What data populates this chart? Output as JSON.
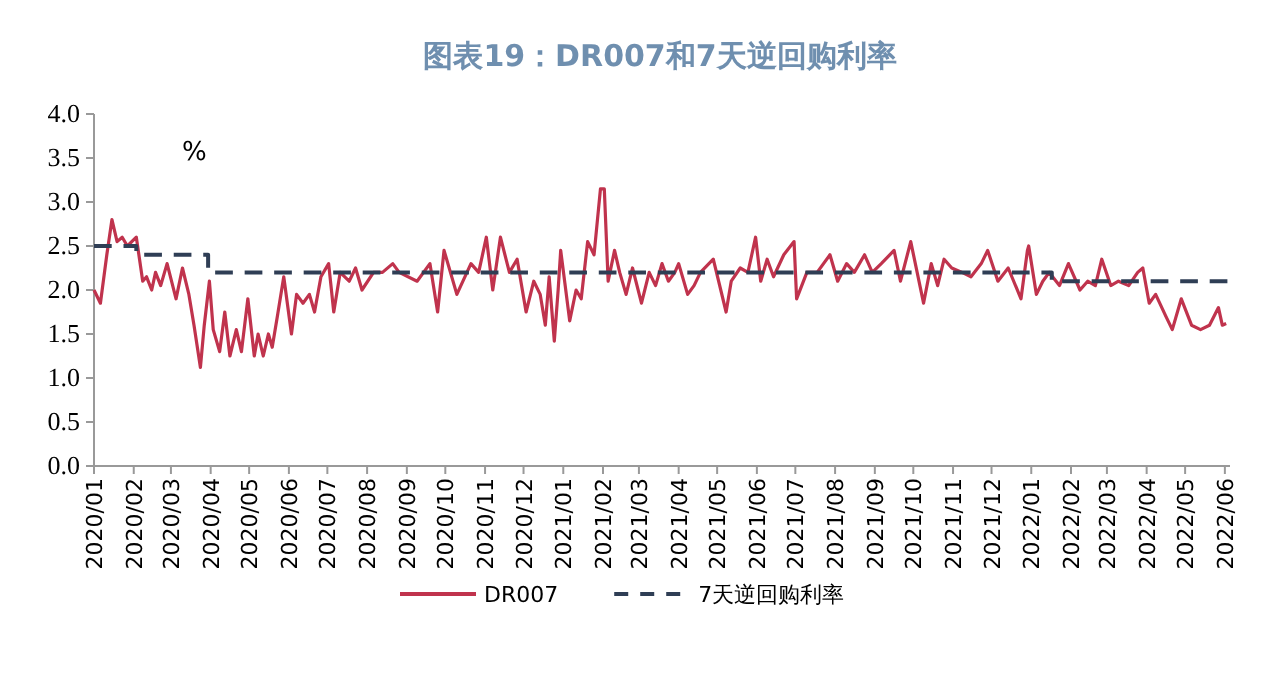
{
  "chart_data": {
    "type": "line",
    "title": "图表19：DR007和7天逆回购利率",
    "annotations": [
      "%"
    ],
    "xlim": [
      "2020-01-01",
      "2022-06-05"
    ],
    "xticks": [
      {
        "value": "2020-01-01",
        "label": "2020/01"
      },
      {
        "value": "2020-02-01",
        "label": "2020/02"
      },
      {
        "value": "2020-03-01",
        "label": "2020/03"
      },
      {
        "value": "2020-04-01",
        "label": "2020/04"
      },
      {
        "value": "2020-05-01",
        "label": "2020/05"
      },
      {
        "value": "2020-06-01",
        "label": "2020/06"
      },
      {
        "value": "2020-07-01",
        "label": "2020/07"
      },
      {
        "value": "2020-08-01",
        "label": "2020/08"
      },
      {
        "value": "2020-09-01",
        "label": "2020/09"
      },
      {
        "value": "2020-10-01",
        "label": "2020/10"
      },
      {
        "value": "2020-11-01",
        "label": "2020/11"
      },
      {
        "value": "2020-12-01",
        "label": "2020/12"
      },
      {
        "value": "2021-01-01",
        "label": "2021/01"
      },
      {
        "value": "2021-02-01",
        "label": "2021/02"
      },
      {
        "value": "2021-03-01",
        "label": "2021/03"
      },
      {
        "value": "2021-04-01",
        "label": "2021/04"
      },
      {
        "value": "2021-05-01",
        "label": "2021/05"
      },
      {
        "value": "2021-06-01",
        "label": "2021/06"
      },
      {
        "value": "2021-07-01",
        "label": "2021/07"
      },
      {
        "value": "2021-08-01",
        "label": "2021/08"
      },
      {
        "value": "2021-09-01",
        "label": "2021/09"
      },
      {
        "value": "2021-10-01",
        "label": "2021/10"
      },
      {
        "value": "2021-11-01",
        "label": "2021/11"
      },
      {
        "value": "2021-12-01",
        "label": "2021/12"
      },
      {
        "value": "2022-01-01",
        "label": "2022/01"
      },
      {
        "value": "2022-02-01",
        "label": "2022/02"
      },
      {
        "value": "2022-03-01",
        "label": "2022/03"
      },
      {
        "value": "2022-04-01",
        "label": "2022/04"
      },
      {
        "value": "2022-05-01",
        "label": "2022/05"
      },
      {
        "value": "2022-06-01",
        "label": "2022/06"
      }
    ],
    "ylim": [
      0,
      4
    ],
    "yticks": [
      {
        "value": 0,
        "label": "0.0"
      },
      {
        "value": 0.5,
        "label": "0.5"
      },
      {
        "value": 1,
        "label": "1.0"
      },
      {
        "value": 1.5,
        "label": "1.5"
      },
      {
        "value": 2,
        "label": "2.0"
      },
      {
        "value": 2.5,
        "label": "2.5"
      },
      {
        "value": 3,
        "label": "3.0"
      },
      {
        "value": 3.5,
        "label": "3.5"
      },
      {
        "value": 4,
        "label": "4.0"
      }
    ],
    "grid": false,
    "legend": "bottom",
    "series": [
      {
        "name": "DR007",
        "color": "#c0334d",
        "line_style": "solid",
        "x": [
          "2020-01-01",
          "2020-01-06",
          "2020-01-11",
          "2020-01-15",
          "2020-01-19",
          "2020-01-23",
          "2020-01-27",
          "2020-02-03",
          "2020-02-08",
          "2020-02-11",
          "2020-02-15",
          "2020-02-18",
          "2020-02-22",
          "2020-02-27",
          "2020-03-05",
          "2020-03-10",
          "2020-03-15",
          "2020-03-19",
          "2020-03-24",
          "2020-03-27",
          "2020-03-31",
          "2020-04-03",
          "2020-04-08",
          "2020-04-12",
          "2020-04-16",
          "2020-04-21",
          "2020-04-25",
          "2020-04-30",
          "2020-05-05",
          "2020-05-08",
          "2020-05-12",
          "2020-05-16",
          "2020-05-19",
          "2020-05-23",
          "2020-05-28",
          "2020-06-03",
          "2020-06-07",
          "2020-06-12",
          "2020-06-17",
          "2020-06-21",
          "2020-06-26",
          "2020-07-02",
          "2020-07-06",
          "2020-07-11",
          "2020-07-18",
          "2020-07-23",
          "2020-07-28",
          "2020-08-06",
          "2020-08-13",
          "2020-08-21",
          "2020-08-26",
          "2020-09-09",
          "2020-09-19",
          "2020-09-25",
          "2020-09-30",
          "2020-10-10",
          "2020-10-21",
          "2020-10-27",
          "2020-11-02",
          "2020-11-07",
          "2020-11-13",
          "2020-11-20",
          "2020-11-26",
          "2020-12-03",
          "2020-12-09",
          "2020-12-14",
          "2020-12-18",
          "2020-12-21",
          "2020-12-25",
          "2020-12-28",
          "2020-12-30",
          "2021-01-06",
          "2021-01-11",
          "2021-01-15",
          "2021-01-20",
          "2021-01-25",
          "2021-01-30",
          "2021-02-02",
          "2021-02-05",
          "2021-02-10",
          "2021-02-14",
          "2021-02-19",
          "2021-02-24",
          "2021-03-03",
          "2021-03-09",
          "2021-03-14",
          "2021-03-19",
          "2021-03-24",
          "2021-03-29",
          "2021-04-01",
          "2021-04-08",
          "2021-04-13",
          "2021-04-18",
          "2021-04-28",
          "2021-05-08",
          "2021-05-12",
          "2021-05-19",
          "2021-05-25",
          "2021-05-31",
          "2021-06-04",
          "2021-06-09",
          "2021-06-14",
          "2021-06-22",
          "2021-06-30",
          "2021-07-02",
          "2021-07-10",
          "2021-07-18",
          "2021-07-28",
          "2021-08-03",
          "2021-08-10",
          "2021-08-16",
          "2021-08-24",
          "2021-08-30",
          "2021-09-06",
          "2021-09-16",
          "2021-09-21",
          "2021-09-29",
          "2021-10-09",
          "2021-10-15",
          "2021-10-20",
          "2021-10-25",
          "2021-10-31",
          "2021-11-08",
          "2021-11-15",
          "2021-11-23",
          "2021-11-28",
          "2021-12-06",
          "2021-12-14",
          "2021-12-24",
          "2021-12-29",
          "2021-12-30",
          "2022-01-05",
          "2022-01-10",
          "2022-01-15",
          "2022-01-23",
          "2022-01-30",
          "2022-02-08",
          "2022-02-14",
          "2022-02-20",
          "2022-02-25",
          "2022-03-04",
          "2022-03-10",
          "2022-03-18",
          "2022-03-25",
          "2022-03-29",
          "2022-04-03",
          "2022-04-08",
          "2022-04-16",
          "2022-04-21",
          "2022-04-28",
          "2022-05-06",
          "2022-05-13",
          "2022-05-20",
          "2022-05-27",
          "2022-05-30",
          "2022-06-02"
        ],
        "values": [
          2.0,
          1.85,
          2.4,
          2.8,
          2.55,
          2.6,
          2.5,
          2.6,
          2.1,
          2.15,
          2.0,
          2.2,
          2.05,
          2.3,
          1.9,
          2.25,
          1.95,
          1.6,
          1.12,
          1.6,
          2.1,
          1.55,
          1.3,
          1.75,
          1.25,
          1.55,
          1.3,
          1.9,
          1.25,
          1.5,
          1.25,
          1.5,
          1.35,
          1.7,
          2.15,
          1.5,
          1.95,
          1.85,
          1.95,
          1.75,
          2.15,
          2.3,
          1.75,
          2.2,
          2.1,
          2.25,
          2.0,
          2.2,
          2.2,
          2.3,
          2.2,
          2.1,
          2.3,
          1.75,
          2.45,
          1.95,
          2.3,
          2.2,
          2.6,
          2.0,
          2.6,
          2.2,
          2.35,
          1.75,
          2.1,
          1.95,
          1.6,
          2.15,
          1.42,
          2.0,
          2.45,
          1.65,
          2.0,
          1.9,
          2.55,
          2.4,
          3.15,
          3.15,
          2.1,
          2.45,
          2.2,
          1.95,
          2.25,
          1.85,
          2.2,
          2.05,
          2.3,
          2.1,
          2.2,
          2.3,
          1.95,
          2.05,
          2.2,
          2.35,
          1.75,
          2.1,
          2.25,
          2.2,
          2.6,
          2.1,
          2.35,
          2.15,
          2.4,
          2.55,
          1.9,
          2.2,
          2.2,
          2.4,
          2.1,
          2.3,
          2.2,
          2.4,
          2.2,
          2.3,
          2.45,
          2.1,
          2.55,
          1.85,
          2.3,
          2.05,
          2.35,
          2.25,
          2.2,
          2.15,
          2.3,
          2.45,
          2.1,
          2.25,
          1.9,
          2.45,
          2.5,
          1.95,
          2.1,
          2.2,
          2.05,
          2.3,
          2.0,
          2.1,
          2.05,
          2.35,
          2.05,
          2.1,
          2.05,
          2.2,
          2.25,
          1.85,
          1.95,
          1.7,
          1.55,
          1.9,
          1.6,
          1.55,
          1.6,
          1.8,
          1.6,
          1.62
        ]
      },
      {
        "name": "7天逆回购利率",
        "type": "step",
        "color": "#2f3e55",
        "line_style": "dashed",
        "x": [
          "2020-01-01",
          "2020-02-03",
          "2020-03-30",
          "2022-01-17",
          "2022-06-03"
        ],
        "values": [
          2.5,
          2.4,
          2.2,
          2.1,
          2.1
        ]
      }
    ]
  }
}
